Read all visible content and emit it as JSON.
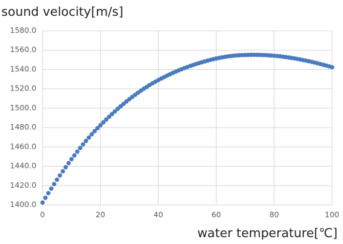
{
  "chart_data": {
    "type": "scatter",
    "title": "sound velocity[m/s]",
    "x_label": "water temperature[℃]",
    "color": "#4a7bbf",
    "grid": true,
    "x": [
      0,
      1,
      2,
      3,
      4,
      5,
      6,
      7,
      8,
      9,
      10,
      11,
      12,
      13,
      14,
      15,
      16,
      17,
      18,
      19,
      20,
      21,
      22,
      23,
      24,
      25,
      26,
      27,
      28,
      29,
      30,
      31,
      32,
      33,
      34,
      35,
      36,
      37,
      38,
      39,
      40,
      41,
      42,
      43,
      44,
      45,
      46,
      47,
      48,
      49,
      50,
      51,
      52,
      53,
      54,
      55,
      56,
      57,
      58,
      59,
      60,
      61,
      62,
      63,
      64,
      65,
      66,
      67,
      68,
      69,
      70,
      71,
      72,
      73,
      74,
      75,
      76,
      77,
      78,
      79,
      80,
      81,
      82,
      83,
      84,
      85,
      86,
      87,
      88,
      89,
      90,
      91,
      92,
      93,
      94,
      95,
      96,
      97,
      98,
      99,
      100
    ],
    "values": [
      1402.4,
      1407.4,
      1412.2,
      1416.9,
      1421.6,
      1426.1,
      1430.5,
      1434.8,
      1439.0,
      1443.2,
      1447.3,
      1451.2,
      1455.1,
      1458.9,
      1462.6,
      1466.2,
      1469.7,
      1473.1,
      1476.3,
      1479.4,
      1482.4,
      1485.4,
      1488.3,
      1491.2,
      1494.0,
      1496.7,
      1499.4,
      1502.0,
      1504.5,
      1507.0,
      1509.4,
      1511.7,
      1513.9,
      1516.1,
      1518.2,
      1520.2,
      1522.1,
      1524.0,
      1525.8,
      1527.5,
      1529.1,
      1530.7,
      1532.2,
      1533.7,
      1535.1,
      1536.5,
      1537.8,
      1539.1,
      1540.3,
      1541.5,
      1542.6,
      1543.7,
      1544.7,
      1545.7,
      1546.6,
      1547.5,
      1548.4,
      1549.2,
      1550.0,
      1550.7,
      1551.4,
      1552.0,
      1552.6,
      1553.1,
      1553.6,
      1554.0,
      1554.3,
      1554.6,
      1554.8,
      1554.9,
      1555.0,
      1555.1,
      1555.2,
      1555.2,
      1555.2,
      1555.1,
      1555.0,
      1554.9,
      1554.7,
      1554.5,
      1554.3,
      1554.0,
      1553.7,
      1553.3,
      1552.9,
      1552.5,
      1552.0,
      1551.5,
      1551.0,
      1550.4,
      1549.8,
      1549.2,
      1548.6,
      1547.9,
      1547.2,
      1546.5,
      1545.7,
      1544.9,
      1544.1,
      1543.3,
      1542.4
    ],
    "xlim": [
      0,
      100
    ],
    "xticks": [
      0,
      20,
      40,
      60,
      80,
      100
    ],
    "ylim": [
      1400,
      1580
    ],
    "yticks": [
      {
        "value": 1400,
        "label": "1400.0"
      },
      {
        "value": 1420,
        "label": "1420.0"
      },
      {
        "value": 1440,
        "label": "1440.0"
      },
      {
        "value": 1460,
        "label": "1460.0"
      },
      {
        "value": 1480,
        "label": "1480.0"
      },
      {
        "value": 1500,
        "label": "1500.0"
      },
      {
        "value": 1520,
        "label": "1520.0"
      },
      {
        "value": 1540,
        "label": "1540.0"
      },
      {
        "value": 1560,
        "label": "1560.0"
      },
      {
        "value": 1580,
        "label": "1580.0"
      }
    ]
  }
}
